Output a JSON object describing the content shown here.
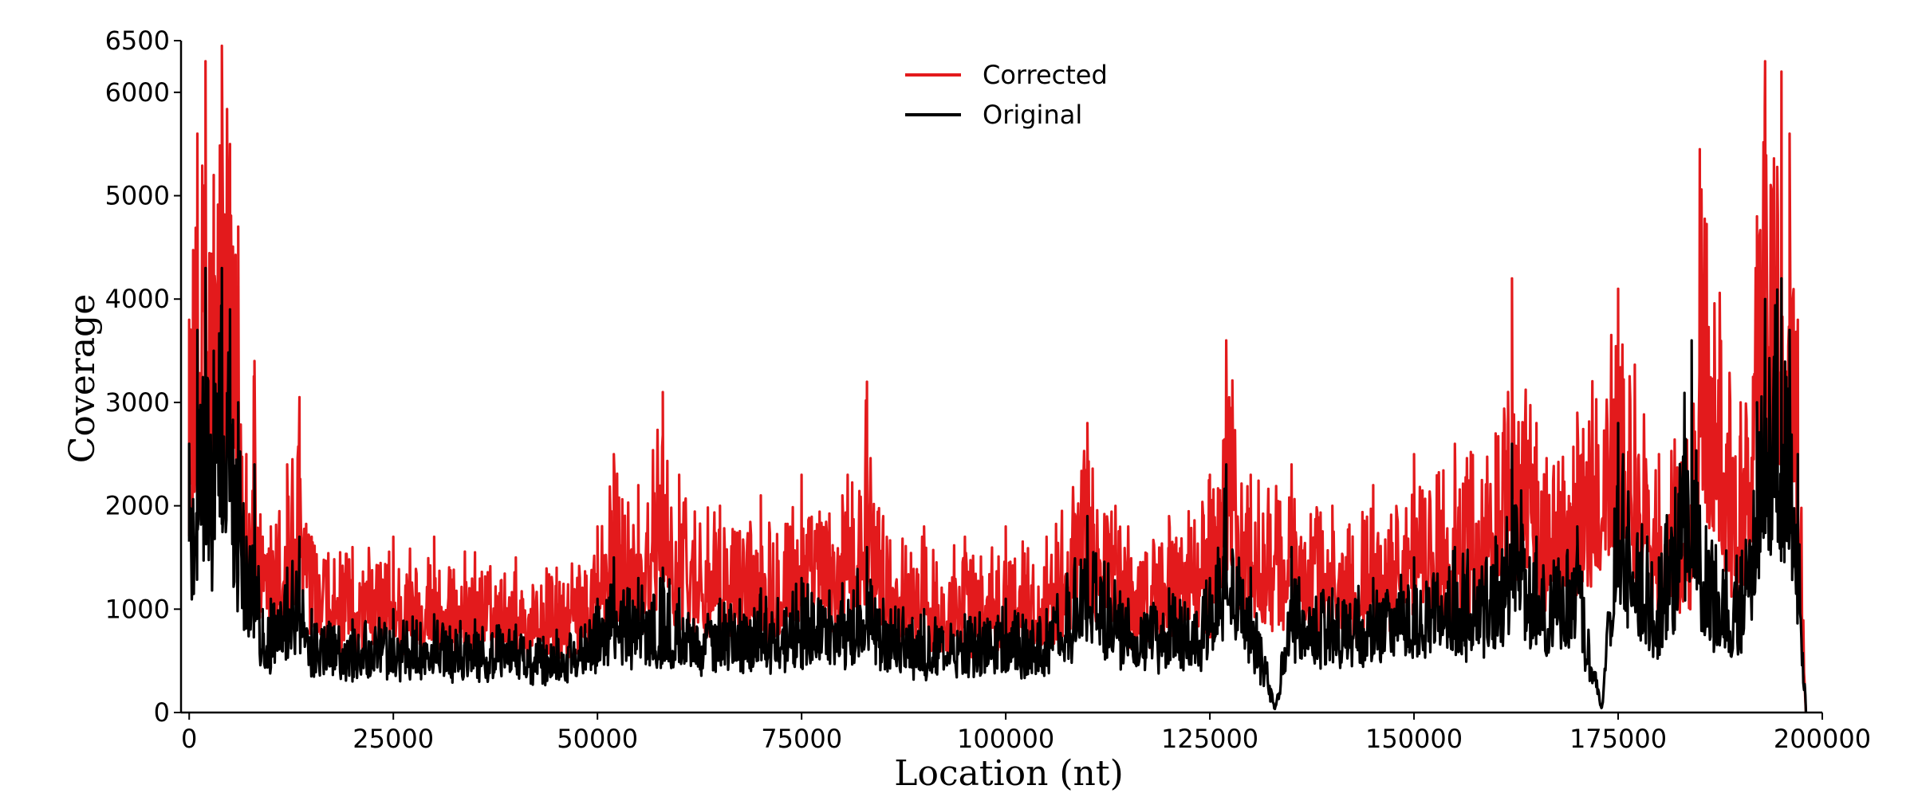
{
  "chart_data": {
    "type": "line",
    "xlabel": "Location (nt)",
    "ylabel": "Coverage",
    "xlim": [
      -1000,
      200000
    ],
    "ylim": [
      0,
      6500
    ],
    "x_ticks": [
      0,
      25000,
      50000,
      75000,
      100000,
      125000,
      150000,
      175000,
      200000
    ],
    "x_tick_labels": [
      "0",
      "25000",
      "50000",
      "75000",
      "100000",
      "125000",
      "150000",
      "175000",
      "200000"
    ],
    "y_ticks": [
      0,
      1000,
      2000,
      3000,
      4000,
      5000,
      6000,
      6500
    ],
    "y_tick_labels": [
      "0",
      "1000",
      "2000",
      "3000",
      "4000",
      "5000",
      "6000",
      "6500"
    ],
    "legend": {
      "placement": "top-center"
    },
    "grid": false,
    "series": [
      {
        "name": "Corrected",
        "color": "#e31a1c",
        "x": [
          0,
          1000,
          2000,
          3000,
          4000,
          5000,
          6000,
          7000,
          8000,
          9000,
          10000,
          12000,
          13500,
          15000,
          20000,
          25000,
          30000,
          35000,
          40000,
          45000,
          50000,
          52000,
          55000,
          58000,
          60000,
          65000,
          70000,
          75000,
          80000,
          83000,
          85000,
          90000,
          95000,
          100000,
          105000,
          110000,
          115000,
          120000,
          125000,
          127000,
          130000,
          135000,
          140000,
          145000,
          150000,
          155000,
          160000,
          162000,
          165000,
          170000,
          175000,
          180000,
          184000,
          185000,
          190000,
          192000,
          193000,
          195000,
          196000,
          197000,
          198000
        ],
        "y": [
          3800,
          5600,
          6300,
          5200,
          6450,
          5500,
          4700,
          2500,
          3400,
          1700,
          1800,
          2400,
          3050,
          1700,
          1600,
          1700,
          1700,
          1550,
          1500,
          1400,
          1800,
          2500,
          2200,
          3100,
          2300,
          2000,
          2100,
          2300,
          2100,
          3200,
          1900,
          1800,
          1700,
          1800,
          1700,
          2800,
          1800,
          1900,
          2300,
          3600,
          2300,
          2400,
          2000,
          2200,
          2500,
          2600,
          2700,
          4200,
          2800,
          2900,
          4100,
          2500,
          3000,
          5450,
          3000,
          4800,
          6300,
          6200,
          5600,
          3800,
          0
        ]
      },
      {
        "name": "Original",
        "color": "#000000",
        "x": [
          0,
          1000,
          2000,
          3000,
          4000,
          5000,
          6000,
          7000,
          8000,
          9000,
          10000,
          12000,
          13500,
          15000,
          20000,
          25000,
          30000,
          35000,
          40000,
          45000,
          50000,
          52000,
          55000,
          58000,
          60000,
          65000,
          70000,
          75000,
          80000,
          83000,
          85000,
          90000,
          95000,
          100000,
          105000,
          110000,
          115000,
          120000,
          125000,
          127000,
          130000,
          133000,
          135000,
          140000,
          145000,
          150000,
          155000,
          160000,
          162000,
          165000,
          170000,
          173000,
          175000,
          180000,
          184000,
          185000,
          190000,
          192000,
          193000,
          195000,
          196000,
          197000,
          198000
        ],
        "y": [
          2600,
          3700,
          4300,
          3500,
          4300,
          3900,
          3000,
          1700,
          2400,
          1000,
          1100,
          1400,
          1700,
          1000,
          900,
          1000,
          950,
          900,
          850,
          800,
          1100,
          1500,
          1300,
          1400,
          1200,
          1100,
          1200,
          1300,
          1250,
          1600,
          1100,
          1000,
          950,
          1100,
          1000,
          1900,
          1100,
          1200,
          1300,
          2400,
          1400,
          50,
          1600,
          1200,
          1300,
          1500,
          1600,
          1700,
          2600,
          1700,
          1800,
          50,
          2800,
          1500,
          3600,
          2000,
          1500,
          3000,
          4000,
          4200,
          3700,
          2500,
          0
        ]
      }
    ]
  }
}
